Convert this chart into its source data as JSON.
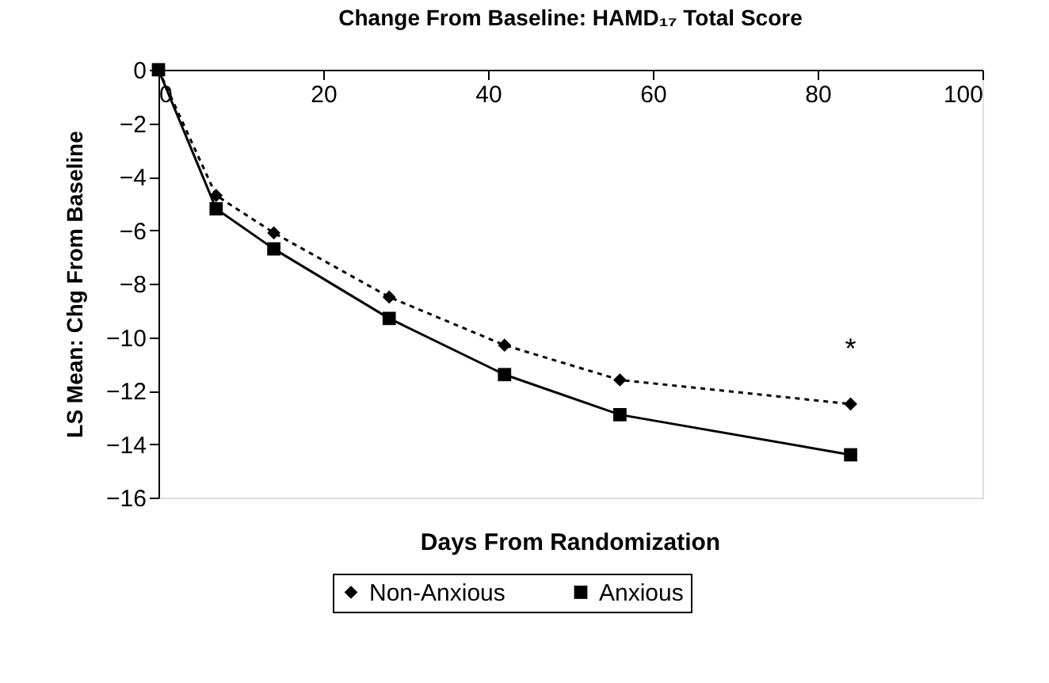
{
  "chart_data": {
    "type": "line",
    "title": "Change From Baseline: HAMD₁₇ Total Score",
    "xlabel": "Days From Randomization",
    "ylabel": "LS Mean: Chg From Baseline",
    "x": [
      0,
      7,
      14,
      28,
      42,
      56,
      84
    ],
    "series": [
      {
        "name": "Non-Anxious",
        "color": "#000000",
        "marker": "diamond",
        "line_style": "dashed",
        "values": [
          0,
          -4.7,
          -6.1,
          -8.5,
          -10.3,
          -11.6,
          -12.5
        ]
      },
      {
        "name": "Anxious",
        "color": "#000000",
        "marker": "square",
        "line_style": "solid",
        "values": [
          0,
          -5.2,
          -6.7,
          -9.3,
          -11.4,
          -12.9,
          -14.4
        ]
      }
    ],
    "xlim": [
      0,
      100
    ],
    "xticks": [
      0,
      20,
      40,
      60,
      80,
      100
    ],
    "ylim": [
      -16,
      0
    ],
    "yticks": [
      0,
      -2,
      -4,
      -6,
      -8,
      -10,
      -12,
      -14,
      -16
    ],
    "annotations": [
      "*"
    ],
    "grid": false,
    "legend": "bottom"
  }
}
